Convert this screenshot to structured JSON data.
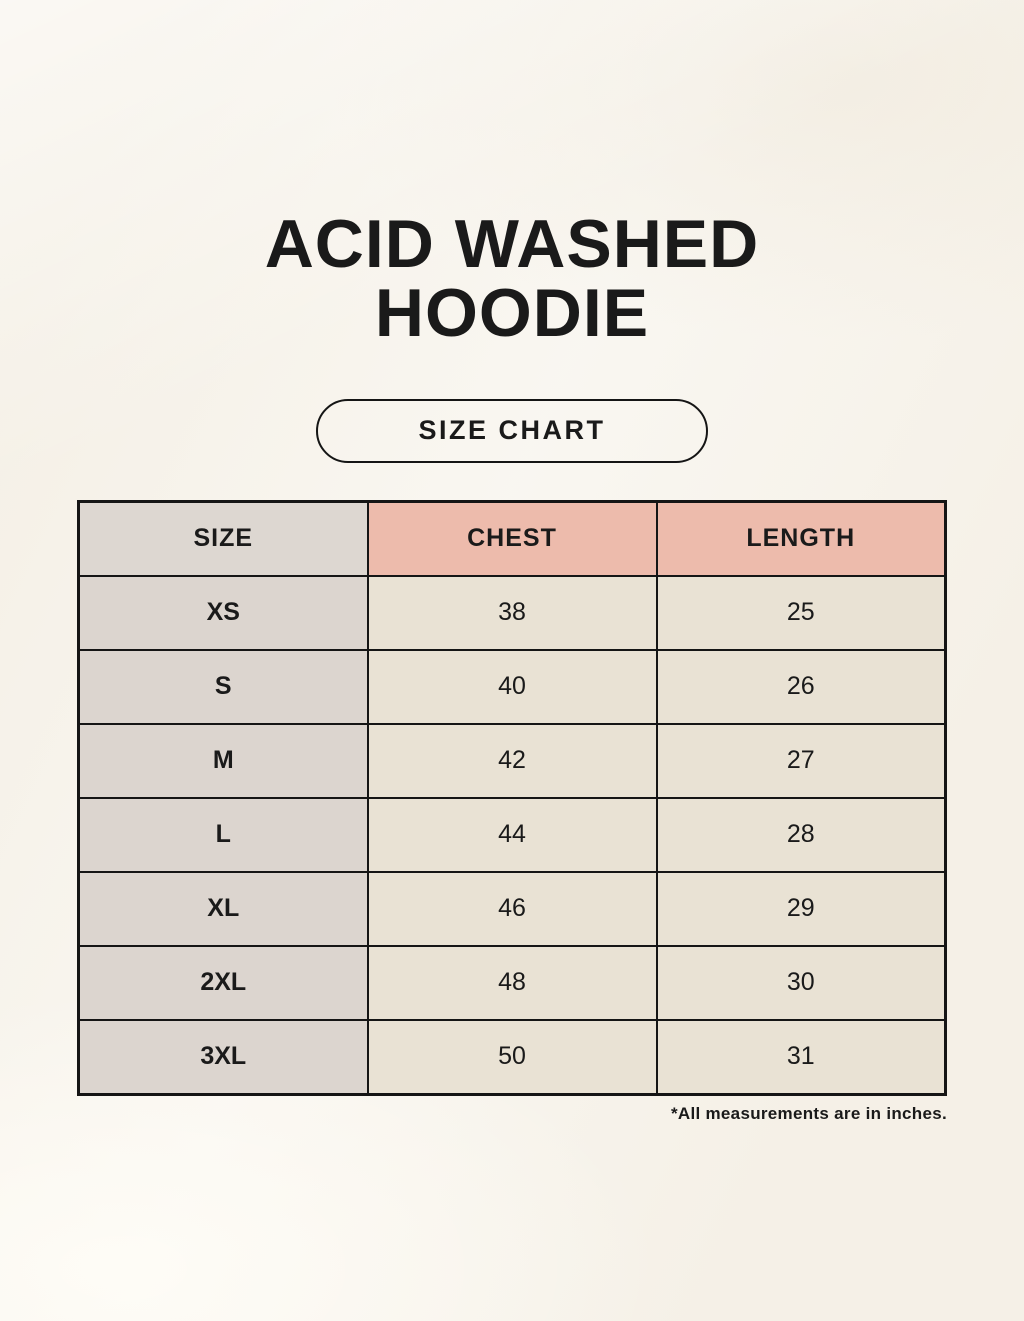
{
  "colors": {
    "background": "#f7f3eb",
    "header_size_bg": "#ddd7d1",
    "header_measure_bg": "#edbbac",
    "row_label_bg": "#dcd5cf",
    "cell_bg": "#e9e2d4",
    "border": "#151515",
    "text": "#1a1a1a"
  },
  "chart_data": {
    "type": "table",
    "title": "ACID WASHED HOODIE",
    "subtitle": "SIZE CHART",
    "columns": [
      "SIZE",
      "CHEST",
      "LENGTH"
    ],
    "rows": [
      [
        "XS",
        38,
        25
      ],
      [
        "S",
        40,
        26
      ],
      [
        "M",
        42,
        27
      ],
      [
        "L",
        44,
        28
      ],
      [
        "XL",
        46,
        29
      ],
      [
        "2XL",
        48,
        30
      ],
      [
        "3XL",
        50,
        31
      ]
    ],
    "footnote": "*All measurements are in inches."
  }
}
